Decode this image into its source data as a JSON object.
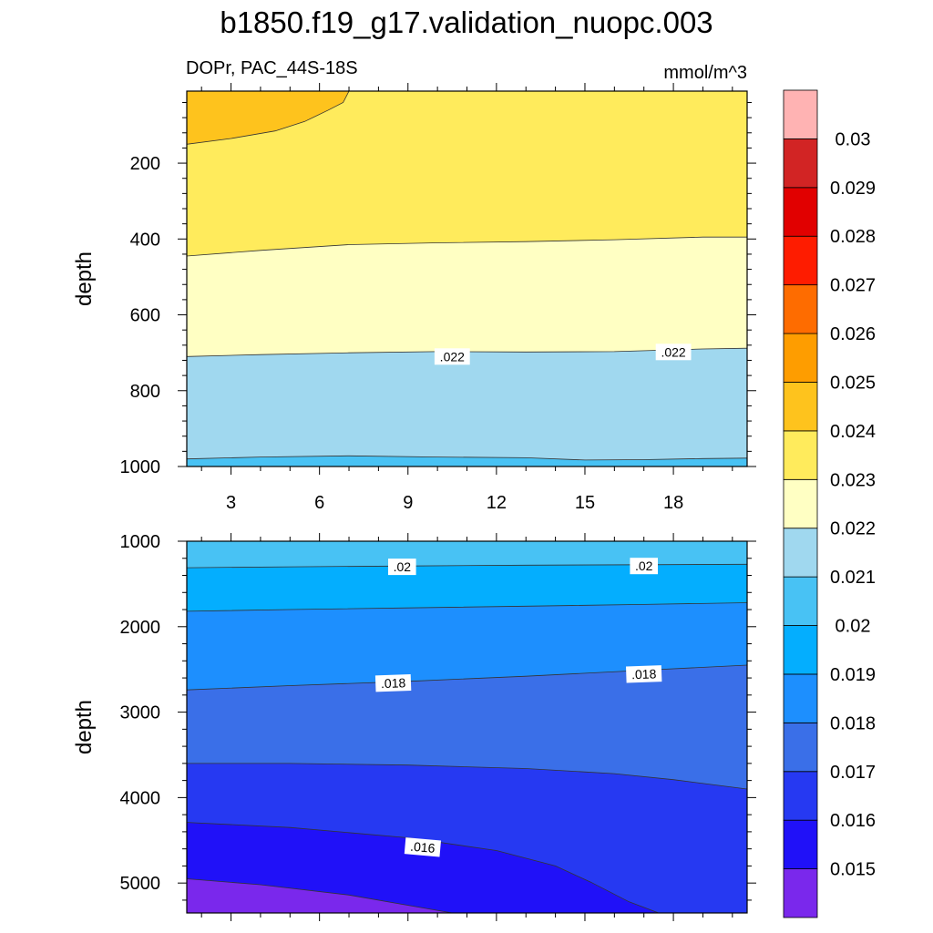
{
  "chart_data": {
    "type": "contour",
    "title": "b1850.f19_g17.validation_nuopc.003",
    "subtitle_left": "DOPr, PAC_44S-18S",
    "subtitle_right": "mmol/m^3",
    "panels": [
      {
        "id": "upper",
        "ylabel": "depth",
        "xlim": [
          1.5,
          20.5
        ],
        "ylim": [
          1000,
          10
        ],
        "x_ticks": [
          3,
          6,
          9,
          12,
          15,
          18
        ],
        "y_ticks": [
          200,
          400,
          600,
          800,
          1000
        ],
        "bands": [
          {
            "color": "#fec31d",
            "x": [
              1.5,
              3,
              4.5,
              5.5,
              6.3,
              6.8,
              7.0,
              6.6,
              5.5,
              4.0,
              3.0,
              1.5
            ],
            "y": [
              150,
              135,
              115,
              90,
              60,
              40,
              10,
              10,
              10,
              10,
              10,
              10
            ]
          },
          {
            "color": "#ffeb5c",
            "top_from": 10,
            "lower": {
              "x": [
                1.5,
                4,
                7,
                10,
                13,
                16,
                19,
                20.5
              ],
              "y": [
                445,
                430,
                415,
                410,
                407,
                402,
                395,
                395
              ]
            }
          },
          {
            "color": "#ffffc3",
            "lower": {
              "x": [
                1.5,
                4,
                7,
                10,
                13,
                16,
                19,
                20.5
              ],
              "y": [
                710,
                705,
                700,
                697,
                698,
                697,
                690,
                688
              ]
            }
          },
          {
            "color": "#a0d8ef",
            "lower": {
              "x": [
                1.5,
                4,
                7,
                10,
                13,
                15,
                17,
                19,
                20.5
              ],
              "y": [
                980,
                975,
                972,
                975,
                977,
                983,
                982,
                979,
                978
              ]
            }
          },
          {
            "color": "#48c2f4",
            "lower": "bottom"
          }
        ],
        "contour_labels": [
          {
            "text": ".022",
            "x": 10.5,
            "y": 710,
            "angle": 0
          },
          {
            "text": ".022",
            "x": 18.0,
            "y": 698,
            "angle": 0
          }
        ]
      },
      {
        "id": "lower",
        "ylabel": "depth",
        "xlim": [
          1.5,
          20.5
        ],
        "ylim": [
          5350,
          1000
        ],
        "x_ticks": [
          3,
          6,
          9,
          12,
          15,
          18
        ],
        "y_ticks": [
          1000,
          2000,
          3000,
          4000,
          5000
        ],
        "bands": [
          {
            "color": "#48c2f4",
            "lower": {
              "x": [
                1.5,
                5,
                9,
                13,
                17,
                20.5
              ],
              "y": [
                1310,
                1300,
                1290,
                1280,
                1275,
                1270
              ]
            }
          },
          {
            "color": "#04aefe",
            "lower": {
              "x": [
                1.5,
                5,
                9,
                13,
                17,
                20.5
              ],
              "y": [
                1820,
                1800,
                1780,
                1760,
                1740,
                1720
              ]
            }
          },
          {
            "color": "#1d8ffe",
            "lower": {
              "x": [
                1.5,
                5,
                9,
                13,
                17,
                20.5
              ],
              "y": [
                2740,
                2690,
                2640,
                2580,
                2510,
                2450
              ]
            }
          },
          {
            "color": "#3a6fe8",
            "lower": {
              "x": [
                1.5,
                5,
                9,
                13,
                16,
                18,
                20.5
              ],
              "y": [
                3600,
                3600,
                3620,
                3660,
                3720,
                3790,
                3900
              ]
            }
          },
          {
            "color": "#2639f2",
            "lower": {
              "x": [
                1.5,
                5,
                9,
                12,
                14,
                15.2,
                16.5,
                17.5,
                20.5
              ],
              "y": [
                4290,
                4350,
                4470,
                4620,
                4800,
                4990,
                5220,
                5350,
                5350
              ]
            }
          },
          {
            "color": "#2011f8",
            "lower": {
              "x": [
                1.5,
                4,
                7,
                9.5,
                10.5,
                20.5
              ],
              "y": [
                4950,
                5020,
                5140,
                5290,
                5350,
                5350
              ]
            }
          },
          {
            "color": "#7a28ec",
            "lower": "bottom"
          }
        ],
        "contour_labels": [
          {
            "text": ".02",
            "x": 8.8,
            "y": 1300,
            "angle": 0
          },
          {
            "text": ".02",
            "x": 17.0,
            "y": 1290,
            "angle": 0
          },
          {
            "text": ".018",
            "x": 8.5,
            "y": 2660,
            "angle": -2
          },
          {
            "text": ".018",
            "x": 17.0,
            "y": 2555,
            "angle": -2
          },
          {
            "text": ".016",
            "x": 9.5,
            "y": 4580,
            "angle": 5
          }
        ]
      }
    ],
    "colorbar": {
      "levels": [
        "0.015",
        "0.016",
        "0.017",
        "0.018",
        "0.019",
        "0.02",
        "0.021",
        "0.022",
        "0.023",
        "0.024",
        "0.025",
        "0.026",
        "0.027",
        "0.028",
        "0.029",
        "0.03"
      ],
      "colors": [
        "#7a28ec",
        "#2011f8",
        "#2639f2",
        "#3a6fe8",
        "#1d8ffe",
        "#04aefe",
        "#48c2f4",
        "#a0d8ef",
        "#ffffc3",
        "#ffeb5c",
        "#fec31d",
        "#fe9d00",
        "#fe6c00",
        "#fe1c00",
        "#e10000",
        "#d22424",
        "#ffb3b3"
      ]
    }
  }
}
